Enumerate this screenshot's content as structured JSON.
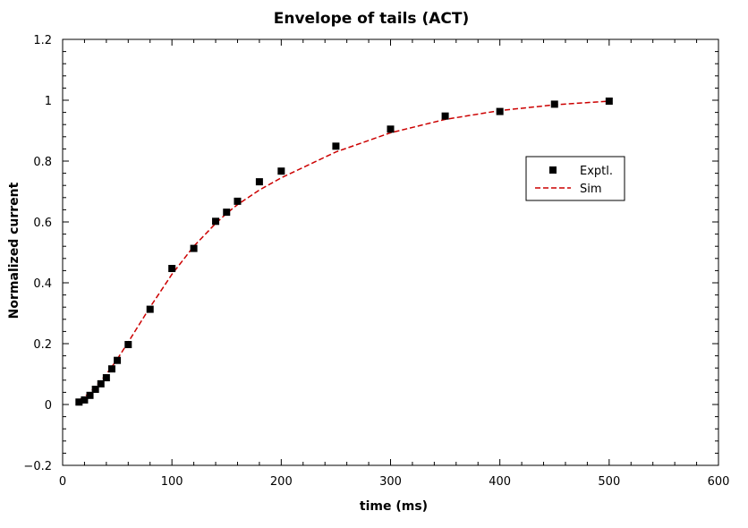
{
  "chart_data": {
    "type": "scatter",
    "title": "Envelope of tails (ACT)",
    "xlabel": "time (ms)",
    "ylabel": "Normalized current",
    "xlim": [
      0,
      600
    ],
    "ylim": [
      -0.2,
      1.2
    ],
    "xticks": [
      0,
      100,
      200,
      300,
      400,
      500,
      600
    ],
    "yticks": [
      -0.2,
      0,
      0.2,
      0.4,
      0.6,
      0.8,
      1,
      1.2
    ],
    "xtick_labels": [
      "0",
      "100",
      "200",
      "300",
      "400",
      "500",
      "600"
    ],
    "ytick_labels": [
      "−0.2",
      "0",
      "0.2",
      "0.4",
      "0.6",
      "0.8",
      "1",
      "1.2"
    ],
    "grid": false,
    "legend_position": "right",
    "series": [
      {
        "name": "Exptl.",
        "style": "markers",
        "marker": "square",
        "color": "#000000",
        "x": [
          15,
          20,
          25,
          30,
          35,
          40,
          45,
          50,
          60,
          80,
          100,
          120,
          140,
          150,
          160,
          180,
          200,
          250,
          300,
          350,
          400,
          450,
          500
        ],
        "y": [
          0.008,
          0.015,
          0.03,
          0.05,
          0.068,
          0.088,
          0.117,
          0.145,
          0.197,
          0.313,
          0.447,
          0.513,
          0.602,
          0.632,
          0.668,
          0.732,
          0.767,
          0.849,
          0.905,
          0.948,
          0.963,
          0.987,
          0.997
        ]
      },
      {
        "name": "Sim",
        "style": "dashed-line",
        "color": "#cc0000",
        "x": [
          15,
          20,
          25,
          30,
          35,
          40,
          45,
          50,
          60,
          80,
          100,
          120,
          140,
          150,
          160,
          180,
          200,
          250,
          300,
          350,
          400,
          450,
          500
        ],
        "y": [
          0.015,
          0.025,
          0.04,
          0.058,
          0.078,
          0.1,
          0.124,
          0.149,
          0.205,
          0.32,
          0.428,
          0.52,
          0.595,
          0.628,
          0.657,
          0.705,
          0.745,
          0.83,
          0.893,
          0.937,
          0.966,
          0.985,
          0.997
        ]
      }
    ]
  }
}
